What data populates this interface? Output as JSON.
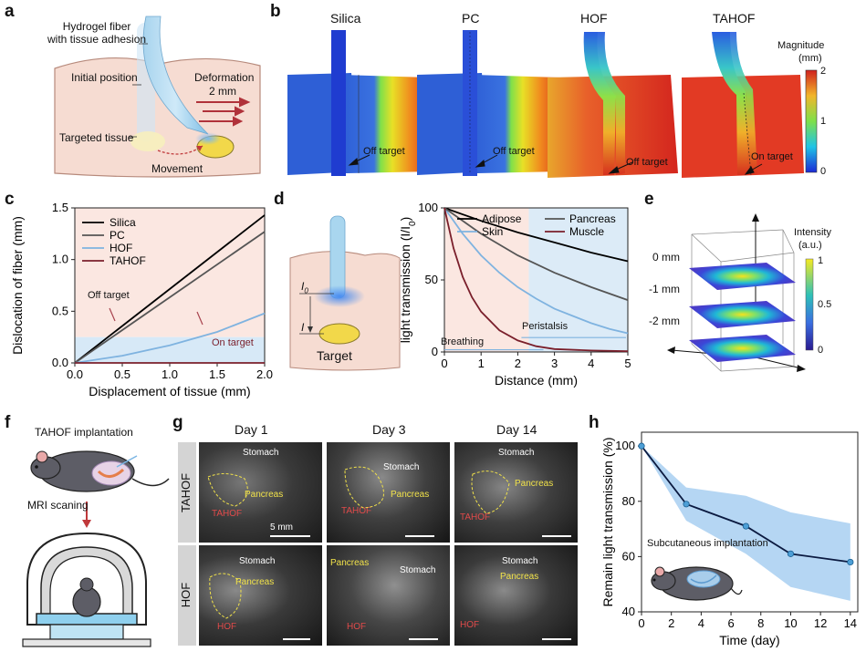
{
  "panels": {
    "a": {
      "letter": "a",
      "fiber_label": "Hydrogel fiber with tissue adhesion",
      "fiber_line1": "Hydrogel fiber",
      "fiber_line2": "with tissue adhesion",
      "initial": "Initial position",
      "deformation": "Deformation",
      "deformation_val": "2 mm",
      "targeted": "Targeted tissue",
      "movement": "Movement"
    },
    "b": {
      "letter": "b",
      "titles": [
        "Silica",
        "PC",
        "HOF",
        "TAHOF"
      ],
      "annotations": [
        "Off target",
        "Off target",
        "Off target",
        "On target"
      ],
      "colorbar_title": "Magnitude",
      "colorbar_unit": "(mm)",
      "colorbar_ticks": [
        "2",
        "1",
        "0"
      ]
    },
    "c": {
      "letter": "c",
      "off_target": "Off target",
      "on_target": "On target"
    },
    "d": {
      "letter": "d",
      "i0": "I",
      "i0_sub": "0",
      "i": "I",
      "target": "Target",
      "breathing": "Breathing",
      "peristalsis": "Peristalsis"
    },
    "e": {
      "letter": "e",
      "depths": [
        "0 mm",
        "-1 mm",
        "-2 mm"
      ],
      "cb_title": "Intensity",
      "cb_unit": "(a.u.)",
      "cb_ticks": [
        "1",
        "0.5",
        "0"
      ]
    },
    "f": {
      "letter": "f",
      "implant": "TAHOF implantation",
      "mri": "MRI scaning"
    },
    "g": {
      "letter": "g",
      "days": [
        "Day 1",
        "Day 3",
        "Day 14"
      ],
      "rows": [
        "TAHOF",
        "HOF"
      ],
      "stomach": "Stomach",
      "pancreas": "Pancreas",
      "tahof": "TAHOF",
      "hof": "HOF",
      "scale": "5 mm"
    },
    "h": {
      "letter": "h",
      "inset": "Subcutaneous implantation"
    }
  },
  "chart_data": [
    {
      "id": "c",
      "type": "line",
      "xlabel": "Displacement of tissue (mm)",
      "ylabel": "Dislocation of fiber (mm)",
      "xlim": [
        0,
        2
      ],
      "ylim": [
        0,
        1.5
      ],
      "xticks": [
        "0.0",
        "0.5",
        "1.0",
        "1.5",
        "2.0"
      ],
      "yticks": [
        "0.0",
        "0.5",
        "1.0",
        "1.5"
      ],
      "series": [
        {
          "name": "Silica",
          "color": "#000000",
          "x": [
            0,
            2
          ],
          "y": [
            0,
            1.43
          ]
        },
        {
          "name": "PC",
          "color": "#555555",
          "x": [
            0,
            2
          ],
          "y": [
            0,
            1.27
          ]
        },
        {
          "name": "HOF",
          "color": "#7fb3e0",
          "x": [
            0,
            0.5,
            1,
            1.5,
            2
          ],
          "y": [
            0,
            0.07,
            0.17,
            0.3,
            0.48
          ]
        },
        {
          "name": "TAHOF",
          "color": "#7a1f2b",
          "x": [
            0,
            2
          ],
          "y": [
            0,
            0
          ]
        }
      ]
    },
    {
      "id": "d",
      "type": "line",
      "xlabel": "Distance (mm)",
      "ylabel": "light transmission (I/I",
      "ylabel_sub": "0",
      "ylabel_end": ")",
      "xlim": [
        0,
        5
      ],
      "ylim": [
        0,
        100
      ],
      "xticks": [
        "0",
        "1",
        "2",
        "3",
        "4",
        "5"
      ],
      "yticks": [
        "0",
        "50",
        "100"
      ],
      "series": [
        {
          "name": "Adipose",
          "color": "#000000",
          "x": [
            0,
            1,
            2,
            3,
            4,
            5
          ],
          "y": [
            100,
            91,
            83,
            76,
            69,
            63
          ]
        },
        {
          "name": "Skin",
          "color": "#7fb3e0",
          "x": [
            0,
            0.5,
            1,
            1.5,
            2,
            2.5,
            3,
            3.5,
            4,
            4.5,
            5
          ],
          "y": [
            100,
            82,
            67,
            55,
            45,
            37,
            30,
            25,
            20,
            16,
            13
          ]
        },
        {
          "name": "Pancreas",
          "color": "#555555",
          "x": [
            0,
            1,
            2,
            3,
            4,
            5
          ],
          "y": [
            100,
            82,
            67,
            55,
            45,
            36
          ]
        },
        {
          "name": "Muscle",
          "color": "#7a1f2b",
          "x": [
            0,
            0.25,
            0.5,
            0.75,
            1,
            1.5,
            2,
            2.5,
            3,
            4,
            5
          ],
          "y": [
            100,
            72,
            52,
            38,
            28,
            15,
            8,
            4,
            2,
            1,
            0.5
          ]
        }
      ]
    },
    {
      "id": "h",
      "type": "line",
      "xlabel": "Time (day)",
      "ylabel": "Remain light transmission (%)",
      "xlim": [
        0,
        14.5
      ],
      "ylim": [
        40,
        105
      ],
      "xticks": [
        "0",
        "2",
        "4",
        "6",
        "8",
        "10",
        "12",
        "14"
      ],
      "yticks": [
        "40",
        "60",
        "80",
        "100"
      ],
      "series": [
        {
          "name": "",
          "color": "#0b1a40",
          "x": [
            0,
            3,
            7,
            10,
            14
          ],
          "y": [
            100,
            79,
            71,
            61,
            58
          ],
          "upper": [
            100,
            85,
            82,
            76,
            72
          ],
          "lower": [
            100,
            73,
            61,
            49,
            44
          ]
        }
      ]
    }
  ]
}
